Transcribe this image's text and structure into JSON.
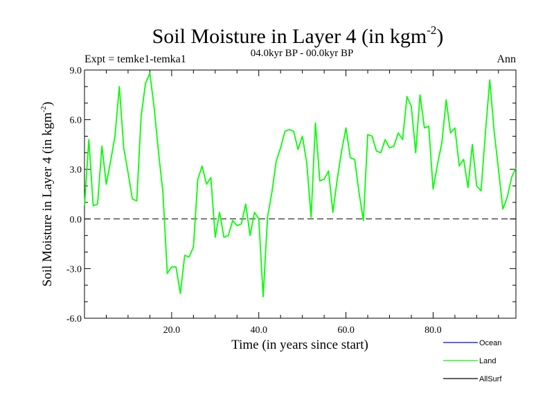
{
  "chart_data": {
    "type": "line",
    "title": "Soil Moisture in Layer 4 (in kgm",
    "title_sup": "-2",
    "title_close": ")",
    "subtitle": "04.0kyr BP - 00.0kyr BP",
    "expt_label": "Expt = temke1-temka1",
    "season_label": "Ann",
    "xlabel": "Time (in years since start)",
    "ylabel": "Soil Moisture in Layer 4 (in kgm",
    "ylabel_sup": "-2",
    "ylabel_close": ")",
    "xlim": [
      0,
      99
    ],
    "ylim": [
      -6,
      9
    ],
    "xticks": [
      20,
      40,
      60,
      80
    ],
    "xtick_labels": [
      "20.0",
      "40.0",
      "60.0",
      "80.0"
    ],
    "yticks": [
      -6,
      -3,
      0,
      3,
      6,
      9
    ],
    "ytick_labels": [
      "-6.0",
      "-3.0",
      "0.0",
      "3.0",
      "6.0",
      "9.0"
    ],
    "zero_line": "dashed",
    "series": [
      {
        "name": "Ocean",
        "color": "#0000ff",
        "x": [],
        "values": []
      },
      {
        "name": "Land",
        "color": "#00ff00",
        "x": [
          0,
          1,
          2,
          3,
          4,
          5,
          6,
          7,
          8,
          9,
          10,
          11,
          12,
          13,
          14,
          15,
          16,
          17,
          18,
          19,
          20,
          21,
          22,
          23,
          24,
          25,
          26,
          27,
          28,
          29,
          30,
          31,
          32,
          33,
          34,
          35,
          36,
          37,
          38,
          39,
          40,
          41,
          42,
          43,
          44,
          45,
          46,
          47,
          48,
          49,
          50,
          51,
          52,
          53,
          54,
          55,
          56,
          57,
          58,
          59,
          60,
          61,
          62,
          63,
          64,
          65,
          66,
          67,
          68,
          69,
          70,
          71,
          72,
          73,
          74,
          75,
          76,
          77,
          78,
          79,
          80,
          81,
          82,
          83,
          84,
          85,
          86,
          87,
          88,
          89,
          90,
          91,
          92,
          93,
          94,
          95,
          96,
          97,
          98,
          99
        ],
        "values": [
          0.8,
          4.8,
          0.8,
          0.9,
          4.4,
          2.1,
          3.5,
          5.0,
          8.0,
          4.3,
          2.8,
          1.2,
          1.1,
          6.2,
          8.2,
          8.8,
          6.7,
          4.0,
          1.6,
          -3.3,
          -2.9,
          -2.9,
          -4.5,
          -2.2,
          -2.3,
          -1.7,
          2.4,
          3.2,
          2.1,
          2.5,
          -1.1,
          0.4,
          -1.1,
          -1.0,
          -0.1,
          -0.4,
          -0.3,
          0.9,
          -1.0,
          0.4,
          0.0,
          -4.7,
          0.1,
          1.6,
          3.5,
          4.3,
          5.3,
          5.4,
          5.3,
          4.2,
          5.0,
          3.4,
          0.1,
          5.8,
          2.3,
          2.4,
          2.9,
          0.4,
          2.4,
          4.1,
          5.5,
          3.7,
          3.6,
          1.6,
          -0.1,
          5.1,
          5.0,
          4.1,
          4.0,
          4.8,
          4.3,
          4.4,
          5.2,
          4.8,
          7.4,
          6.8,
          4.0,
          7.5,
          5.5,
          5.6,
          1.8,
          3.3,
          4.6,
          7.2,
          5.2,
          5.5,
          3.2,
          3.6,
          1.9,
          4.5,
          2.0,
          1.7,
          5.2,
          8.4,
          5.3,
          3.0,
          0.6,
          1.3,
          2.5,
          3.1
        ]
      },
      {
        "name": "AllSurf",
        "color": "#000000",
        "x": [],
        "values": []
      }
    ],
    "legend_position": "bottom-right"
  }
}
